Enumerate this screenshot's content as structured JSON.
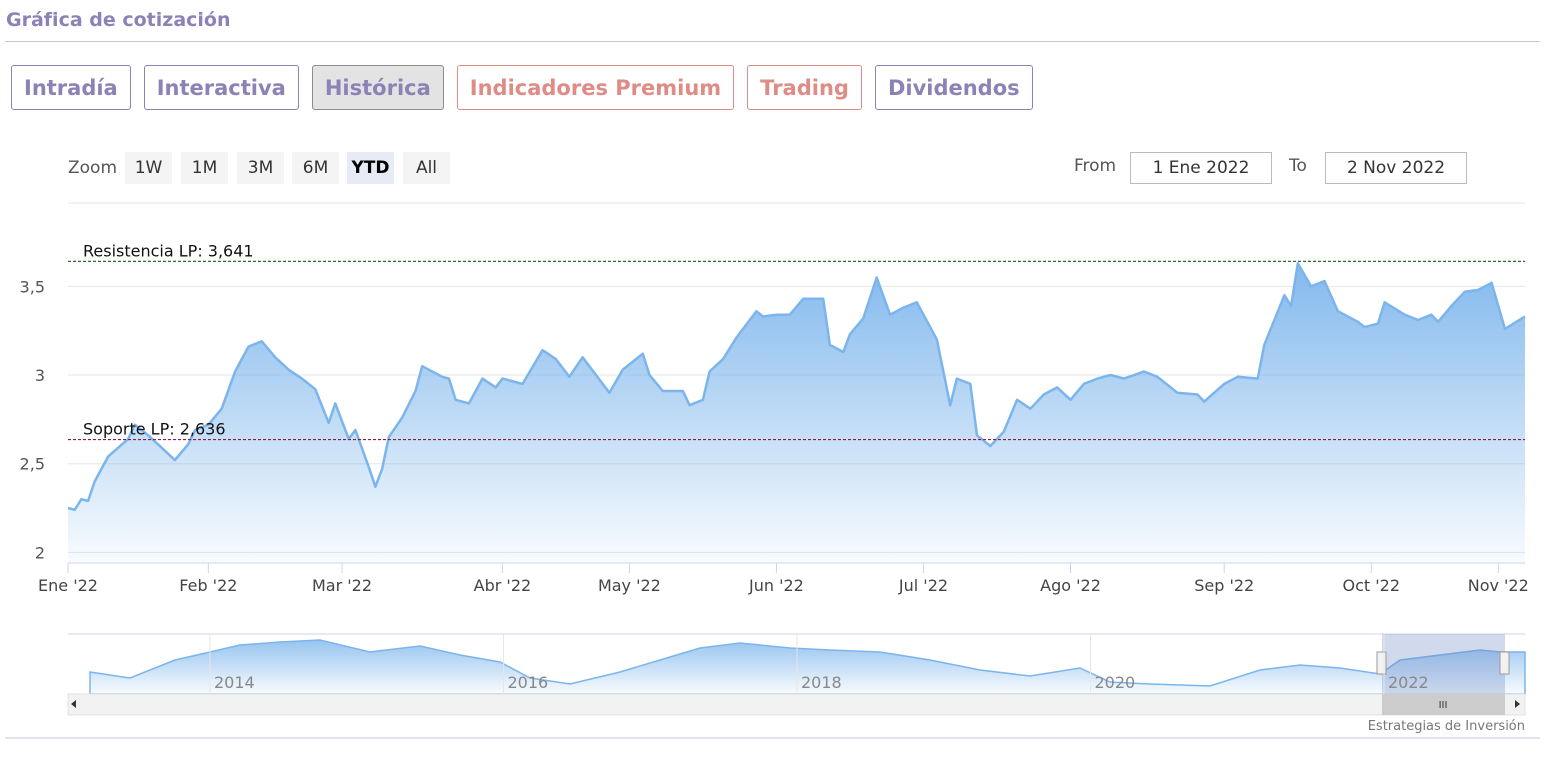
{
  "header": {
    "title": "Gráfica de cotización"
  },
  "tabs": [
    {
      "label": "Intradía",
      "color": "#8c82b6",
      "active": false
    },
    {
      "label": "Interactiva",
      "color": "#8c82b6",
      "active": false
    },
    {
      "label": "Histórica",
      "color": "#8c82b6",
      "active": true
    },
    {
      "label": "Indicadores Premium",
      "color": "#df8b86",
      "active": false
    },
    {
      "label": "Trading",
      "color": "#df8b86",
      "active": false
    },
    {
      "label": "Dividendos",
      "color": "#8c82b6",
      "active": false
    }
  ],
  "zoom": {
    "label": "Zoom",
    "buttons": [
      "1W",
      "1M",
      "3M",
      "6M",
      "YTD",
      "All"
    ],
    "selected": 4
  },
  "range": {
    "from_label": "From",
    "from": "1 Ene 2022",
    "to_label": "To",
    "to": "2 Nov 2022"
  },
  "chart_data": {
    "type": "area",
    "xlim": [
      0,
      218
    ],
    "xticks": [
      {
        "value": 0,
        "label": "Ene '22"
      },
      {
        "value": 21,
        "label": "Feb '22"
      },
      {
        "value": 41,
        "label": "Mar '22"
      },
      {
        "value": 65,
        "label": "Abr '22"
      },
      {
        "value": 84,
        "label": "May '22"
      },
      {
        "value": 106,
        "label": "Jun '22"
      },
      {
        "value": 128,
        "label": "Jul '22"
      },
      {
        "value": 150,
        "label": "Ago '22"
      },
      {
        "value": 173,
        "label": "Sep '22"
      },
      {
        "value": 195,
        "label": "Oct '22"
      },
      {
        "value": 214,
        "label": "Nov '22"
      }
    ],
    "ylim": [
      1.94,
      3.97
    ],
    "yticks": [
      {
        "value": 3.5,
        "label": "3,5"
      },
      3,
      {
        "value": 2.5,
        "label": "2,5"
      },
      2
    ],
    "grid": true,
    "series": [
      {
        "color": "#7cb5ec",
        "x": [
          0,
          1,
          2,
          3,
          4,
          6,
          9,
          10,
          12,
          14,
          16,
          18,
          19,
          21,
          23,
          25,
          27,
          29,
          31,
          33,
          35,
          37,
          39,
          40,
          42,
          43,
          45,
          46,
          47,
          48,
          50,
          52,
          53,
          56,
          57,
          58,
          60,
          62,
          64,
          65,
          68,
          71,
          73,
          75,
          77,
          79,
          81,
          83,
          86,
          87,
          89,
          92,
          93,
          95,
          96,
          98,
          100,
          103,
          104,
          106,
          108,
          110,
          113,
          114,
          116,
          117,
          119,
          121,
          123,
          125,
          127,
          129,
          130,
          132,
          133,
          135,
          136,
          138,
          140,
          142,
          144,
          146,
          148,
          150,
          152,
          154,
          156,
          158,
          161,
          163,
          166,
          169,
          170,
          173,
          175,
          178,
          179,
          182,
          183,
          184,
          186,
          188,
          190,
          193,
          194,
          196,
          197,
          200,
          202,
          204,
          205,
          207,
          209,
          211,
          213,
          215,
          218
        ],
        "values": [
          2.25,
          2.24,
          2.3,
          2.29,
          2.4,
          2.54,
          2.64,
          2.72,
          2.66,
          2.59,
          2.52,
          2.61,
          2.69,
          2.72,
          2.81,
          3.02,
          3.16,
          3.19,
          3.1,
          3.03,
          2.98,
          2.92,
          2.73,
          2.84,
          2.64,
          2.69,
          2.48,
          2.37,
          2.47,
          2.65,
          2.76,
          2.91,
          3.05,
          2.99,
          2.98,
          2.86,
          2.84,
          2.98,
          2.93,
          2.98,
          2.95,
          3.14,
          3.09,
          2.99,
          3.1,
          3.0,
          2.9,
          3.03,
          3.12,
          3.0,
          2.91,
          2.91,
          2.83,
          2.86,
          3.02,
          3.09,
          3.21,
          3.36,
          3.33,
          3.34,
          3.34,
          3.43,
          3.43,
          3.17,
          3.13,
          3.23,
          3.32,
          3.55,
          3.34,
          3.38,
          3.41,
          3.27,
          3.2,
          2.83,
          2.98,
          2.95,
          2.66,
          2.6,
          2.68,
          2.86,
          2.81,
          2.89,
          2.93,
          2.86,
          2.95,
          2.98,
          3.0,
          2.98,
          3.02,
          2.99,
          2.9,
          2.89,
          2.85,
          2.95,
          2.99,
          2.98,
          3.17,
          3.45,
          3.39,
          3.63,
          3.5,
          3.53,
          3.36,
          3.3,
          3.27,
          3.29,
          3.41,
          3.34,
          3.31,
          3.34,
          3.3,
          3.39,
          3.47,
          3.48,
          3.52,
          3.26,
          3.33
        ]
      }
    ],
    "annotations": [
      {
        "label": "Resistencia LP: 3,641",
        "value": 3.641,
        "color": "#2e6b2e"
      },
      {
        "label": "Soporte LP: 2,636",
        "value": 2.636,
        "color": "#8a1c3c"
      }
    ]
  },
  "navigator": {
    "labels": [
      "2014",
      "2016",
      "2018",
      "2020",
      "2022"
    ]
  },
  "credit": "Estrategias de Inversión"
}
